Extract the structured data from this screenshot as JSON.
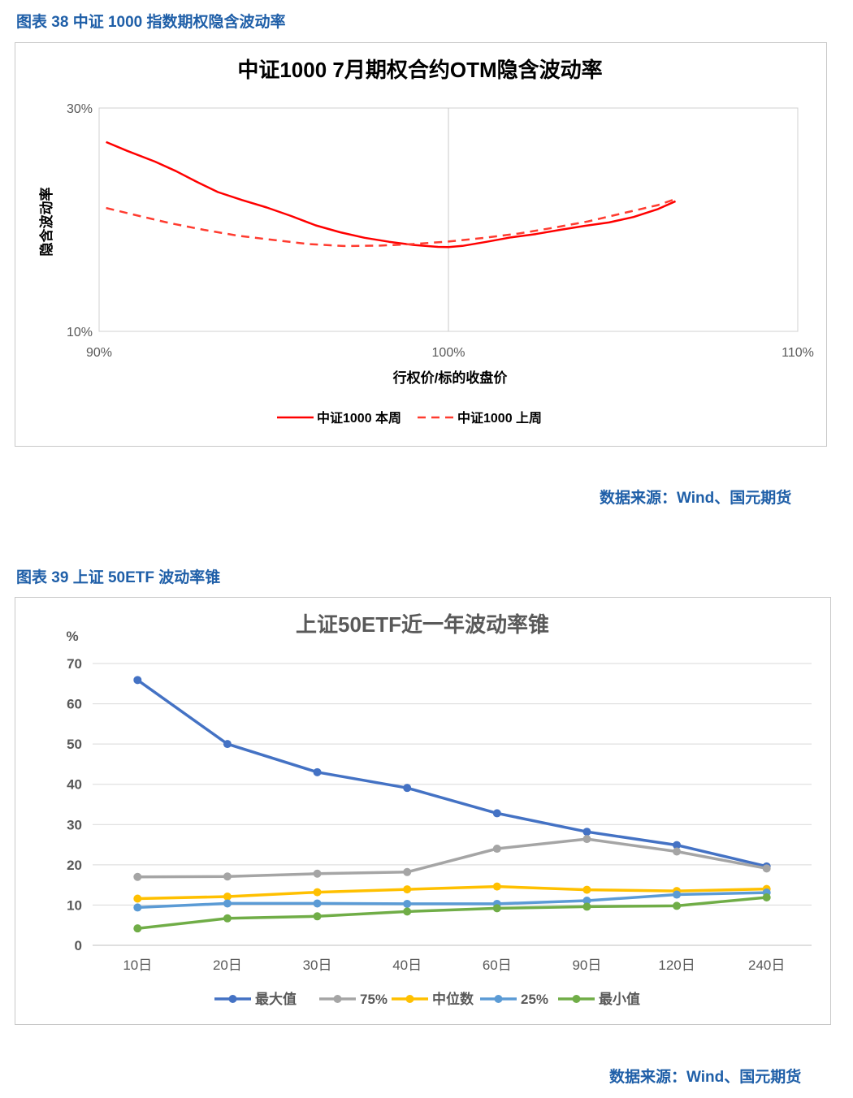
{
  "figure1": {
    "caption": "图表 38  中证 1000 指数期权隐含波动率",
    "source": "数据来源：Wind、国元期货"
  },
  "figure2": {
    "caption": "图表 39  上证 50ETF 波动率锥",
    "source": "数据来源：Wind、国元期货"
  },
  "chart_data": [
    {
      "type": "line",
      "title": "中证1000  7月期权合约OTM隐含波动率",
      "xlabel": "行权价/标的收盘价",
      "ylabel": "隐含波动率",
      "xlim": [
        0.9,
        1.1
      ],
      "ylim": [
        0.1,
        0.3
      ],
      "x_ticks": [
        "90%",
        "100%",
        "110%"
      ],
      "y_ticks": [
        "10%",
        "30%"
      ],
      "vertical_ref_line": 1.0,
      "legend_position": "bottom",
      "colors": {
        "本周": "#ff0000",
        "上周": "#ff3b2f"
      },
      "series": [
        {
          "name": "中证1000  本周",
          "style": "solid",
          "points": [
            [
              0.902,
              0.2695
            ],
            [
              0.908,
              0.2617
            ],
            [
              0.916,
              0.252
            ],
            [
              0.922,
              0.2435
            ],
            [
              0.928,
              0.2338
            ],
            [
              0.934,
              0.2247
            ],
            [
              0.941,
              0.2175
            ],
            [
              0.948,
              0.2109
            ],
            [
              0.955,
              0.2033
            ],
            [
              0.962,
              0.1949
            ],
            [
              0.969,
              0.1887
            ],
            [
              0.976,
              0.1838
            ],
            [
              0.983,
              0.1802
            ],
            [
              0.99,
              0.1774
            ],
            [
              0.997,
              0.1756
            ],
            [
              1.0,
              0.1755
            ],
            [
              1.004,
              0.1765
            ],
            [
              1.011,
              0.1802
            ],
            [
              1.018,
              0.1842
            ],
            [
              1.025,
              0.1871
            ],
            [
              1.032,
              0.1909
            ],
            [
              1.039,
              0.1945
            ],
            [
              1.046,
              0.1975
            ],
            [
              1.053,
              0.2024
            ],
            [
              1.06,
              0.2095
            ],
            [
              1.065,
              0.2165
            ]
          ]
        },
        {
          "name": "中证1000  上周",
          "style": "dashed",
          "points": [
            [
              0.902,
              0.2105
            ],
            [
              0.91,
              0.2044
            ],
            [
              0.92,
              0.1971
            ],
            [
              0.93,
              0.1909
            ],
            [
              0.94,
              0.1855
            ],
            [
              0.95,
              0.1818
            ],
            [
              0.96,
              0.1782
            ],
            [
              0.97,
              0.1764
            ],
            [
              0.98,
              0.1767
            ],
            [
              0.99,
              0.1782
            ],
            [
              1.0,
              0.1804
            ],
            [
              1.01,
              0.1836
            ],
            [
              1.02,
              0.1876
            ],
            [
              1.03,
              0.1927
            ],
            [
              1.04,
              0.1985
            ],
            [
              1.05,
              0.2058
            ],
            [
              1.06,
              0.2131
            ],
            [
              1.065,
              0.2185
            ]
          ]
        }
      ]
    },
    {
      "type": "line",
      "title": "上证50ETF近一年波动率锥",
      "y_unit": "%",
      "ylim": [
        0,
        70
      ],
      "y_ticks": [
        0,
        10,
        20,
        30,
        40,
        50,
        60,
        70
      ],
      "categories": [
        "10日",
        "20日",
        "30日",
        "40日",
        "60日",
        "90日",
        "120日",
        "240日"
      ],
      "legend_position": "bottom",
      "series": [
        {
          "name": "最大值",
          "color": "#4472c4",
          "values": [
            65.9,
            50.0,
            43.0,
            39.1,
            32.8,
            28.2,
            24.9,
            19.6
          ]
        },
        {
          "name": "75%",
          "color": "#a5a5a5",
          "values": [
            17.0,
            17.1,
            17.8,
            18.2,
            24.0,
            26.4,
            23.3,
            19.1
          ]
        },
        {
          "name": "中位数",
          "color": "#ffc000",
          "values": [
            11.6,
            12.1,
            13.2,
            13.9,
            14.6,
            13.8,
            13.5,
            14.0
          ]
        },
        {
          "name": "25%",
          "color": "#5b9bd5",
          "values": [
            9.4,
            10.4,
            10.4,
            10.3,
            10.3,
            11.1,
            12.6,
            13.1
          ]
        },
        {
          "name": "最小值",
          "color": "#70ad47",
          "values": [
            4.2,
            6.7,
            7.2,
            8.4,
            9.2,
            9.6,
            9.8,
            11.9
          ]
        }
      ]
    }
  ]
}
